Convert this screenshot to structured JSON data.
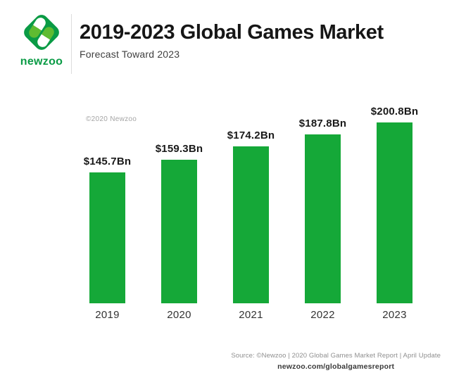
{
  "header": {
    "logo_text": "newzoo",
    "title": "2019-2023 Global Games Market",
    "subtitle": "Forecast Toward 2023"
  },
  "watermark": "©2020 Newzoo",
  "chart_data": {
    "type": "bar",
    "title": "2019-2023 Global Games Market",
    "subtitle": "Forecast Toward 2023",
    "categories": [
      "2019",
      "2020",
      "2021",
      "2022",
      "2023"
    ],
    "values": [
      145.7,
      159.3,
      174.2,
      187.8,
      200.8
    ],
    "value_labels": [
      "$145.7Bn",
      "$159.3Bn",
      "$174.2Bn",
      "$187.8Bn",
      "$200.8Bn"
    ],
    "xlabel": "",
    "ylabel": "",
    "ylim": [
      0,
      210
    ],
    "grid": false,
    "legend": false,
    "bar_color": "#15A838"
  },
  "footer": {
    "source_line": "Source: ©Newzoo | 2020 Global Games Market Report | April Update",
    "url": "newzoo.com/globalgamesreport"
  },
  "colors": {
    "bar_green": "#15A838",
    "logo_dark_green": "#0A9B45",
    "logo_light_green": "#5FBB31",
    "title_text": "#161616",
    "subtitle_text": "#3F3F3F",
    "watermark_text": "#A5A5A5",
    "source_text": "#8F8F8F",
    "url_text": "#383838",
    "divider": "#DCDCDC",
    "background": "#FFFFFF"
  }
}
